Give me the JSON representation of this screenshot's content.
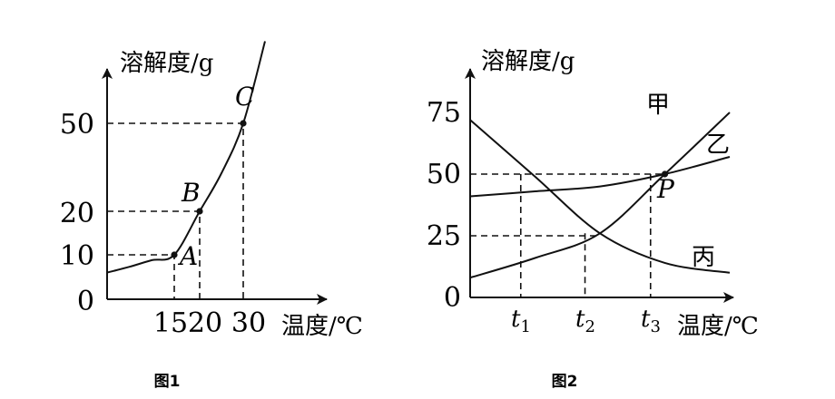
{
  "chart_data": [
    {
      "type": "line",
      "title": "图1",
      "ylabel": "溶解度/g",
      "xlabel": "温度/℃",
      "y_ticks": [
        "50",
        "20",
        "10",
        "0"
      ],
      "x_ticks": [
        "15",
        "20",
        "30"
      ],
      "series": [
        {
          "x": [
            0,
            5,
            10,
            15,
            20,
            25,
            30,
            35
          ],
          "values": [
            6,
            7.3,
            8.8,
            10,
            20,
            33,
            50,
            78
          ]
        }
      ],
      "points": [
        {
          "label": "A",
          "x": 15,
          "y": 10
        },
        {
          "label": "B",
          "x": 20,
          "y": 20
        },
        {
          "label": "C",
          "x": 30,
          "y": 50
        }
      ],
      "grid": false
    },
    {
      "type": "line",
      "title": "图2",
      "ylabel": "溶解度/g",
      "xlabel": "温度/℃",
      "y_ticks": [
        "75",
        "50",
        "25",
        "0"
      ],
      "x_ticks": [
        "t1",
        "t2",
        "t3"
      ],
      "series": [
        {
          "name": "甲",
          "x": [
            0,
            1,
            2,
            3,
            4
          ],
          "values": [
            8,
            16,
            26,
            50,
            75
          ]
        },
        {
          "name": "乙",
          "x": [
            0,
            1,
            2,
            3,
            4
          ],
          "values": [
            41,
            43,
            45,
            50,
            57
          ]
        },
        {
          "name": "丙",
          "x": [
            0,
            1,
            2,
            3,
            4
          ],
          "values": [
            72,
            49,
            26,
            14,
            10
          ]
        }
      ],
      "points": [
        {
          "label": "P",
          "x": 3,
          "y": 50
        }
      ],
      "grid": false
    }
  ]
}
